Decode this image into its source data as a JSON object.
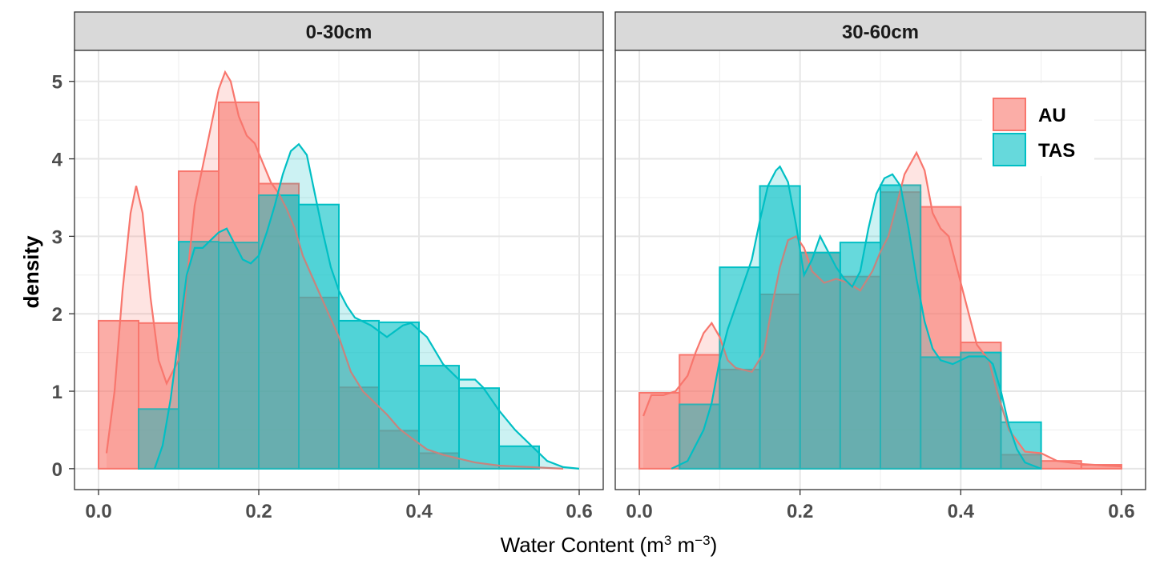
{
  "chart_data": {
    "type": "histogram-density",
    "xlabel": "Water Content (m",
    "xlabel_sup1": "3",
    "xlabel_mid": " m",
    "xlabel_sup2": "−3",
    "xlabel_end": ")",
    "ylabel": "density",
    "xlim": [
      -0.03,
      0.63
    ],
    "ylim": [
      -0.27,
      5.4
    ],
    "x_ticks": [
      0.0,
      0.2,
      0.4,
      0.6
    ],
    "x_tick_labels": [
      "0.0",
      "0.2",
      "0.4",
      "0.6"
    ],
    "y_ticks": [
      0,
      1,
      2,
      3,
      4,
      5
    ],
    "y_tick_labels": [
      "0",
      "1",
      "2",
      "3",
      "4",
      "5"
    ],
    "grid": true,
    "legend_position": "top-right (inside right panel)",
    "bins": [
      0.0,
      0.05,
      0.1,
      0.15,
      0.2,
      0.25,
      0.3,
      0.35,
      0.4,
      0.45,
      0.5,
      0.55,
      0.6
    ],
    "series": [
      {
        "name": "AU",
        "fill": "#F8766D",
        "line": "#F8766D"
      },
      {
        "name": "TAS",
        "fill": "#00BFC4",
        "line": "#00BFC4"
      }
    ],
    "panels": [
      {
        "label": "0-30cm",
        "hist": {
          "AU": [
            1.91,
            1.88,
            3.84,
            4.73,
            3.68,
            2.21,
            1.05,
            0.49,
            0.2,
            0.0,
            0.0,
            0.0
          ],
          "TAS": [
            0.0,
            0.77,
            2.93,
            2.92,
            3.53,
            3.41,
            1.91,
            1.89,
            1.33,
            1.04,
            0.29,
            0.0
          ]
        },
        "density": {
          "AU": [
            [
              0.01,
              0.2
            ],
            [
              0.02,
              1.0
            ],
            [
              0.03,
              2.3
            ],
            [
              0.04,
              3.3
            ],
            [
              0.047,
              3.65
            ],
            [
              0.055,
              3.3
            ],
            [
              0.065,
              2.2
            ],
            [
              0.075,
              1.4
            ],
            [
              0.085,
              1.1
            ],
            [
              0.1,
              1.4
            ],
            [
              0.11,
              2.4
            ],
            [
              0.12,
              3.4
            ],
            [
              0.13,
              3.9
            ],
            [
              0.14,
              4.4
            ],
            [
              0.15,
              4.9
            ],
            [
              0.158,
              5.12
            ],
            [
              0.165,
              5.0
            ],
            [
              0.175,
              4.55
            ],
            [
              0.185,
              4.3
            ],
            [
              0.195,
              4.2
            ],
            [
              0.205,
              3.95
            ],
            [
              0.215,
              3.7
            ],
            [
              0.225,
              3.55
            ],
            [
              0.235,
              3.35
            ],
            [
              0.245,
              3.1
            ],
            [
              0.255,
              2.75
            ],
            [
              0.27,
              2.4
            ],
            [
              0.285,
              2.05
            ],
            [
              0.3,
              1.7
            ],
            [
              0.315,
              1.25
            ],
            [
              0.33,
              1.0
            ],
            [
              0.345,
              0.85
            ],
            [
              0.36,
              0.7
            ],
            [
              0.375,
              0.52
            ],
            [
              0.39,
              0.4
            ],
            [
              0.41,
              0.25
            ],
            [
              0.43,
              0.18
            ],
            [
              0.45,
              0.13
            ],
            [
              0.47,
              0.08
            ],
            [
              0.5,
              0.04
            ],
            [
              0.54,
              0.02
            ],
            [
              0.58,
              0.0
            ]
          ],
          "TAS": [
            [
              0.07,
              0.0
            ],
            [
              0.08,
              0.3
            ],
            [
              0.09,
              0.9
            ],
            [
              0.1,
              1.7
            ],
            [
              0.11,
              2.5
            ],
            [
              0.12,
              2.85
            ],
            [
              0.13,
              2.85
            ],
            [
              0.14,
              2.95
            ],
            [
              0.15,
              3.05
            ],
            [
              0.16,
              3.1
            ],
            [
              0.17,
              2.9
            ],
            [
              0.18,
              2.7
            ],
            [
              0.19,
              2.65
            ],
            [
              0.2,
              2.75
            ],
            [
              0.21,
              3.05
            ],
            [
              0.22,
              3.4
            ],
            [
              0.23,
              3.8
            ],
            [
              0.24,
              4.1
            ],
            [
              0.25,
              4.19
            ],
            [
              0.26,
              4.05
            ],
            [
              0.27,
              3.55
            ],
            [
              0.28,
              3.05
            ],
            [
              0.29,
              2.6
            ],
            [
              0.3,
              2.3
            ],
            [
              0.31,
              2.1
            ],
            [
              0.32,
              1.95
            ],
            [
              0.34,
              1.85
            ],
            [
              0.36,
              1.7
            ],
            [
              0.38,
              1.85
            ],
            [
              0.39,
              1.88
            ],
            [
              0.41,
              1.7
            ],
            [
              0.43,
              1.35
            ],
            [
              0.45,
              1.15
            ],
            [
              0.47,
              1.15
            ],
            [
              0.48,
              1.05
            ],
            [
              0.5,
              0.75
            ],
            [
              0.52,
              0.5
            ],
            [
              0.54,
              0.3
            ],
            [
              0.56,
              0.1
            ],
            [
              0.58,
              0.02
            ],
            [
              0.6,
              0.0
            ]
          ]
        }
      },
      {
        "label": "30-60cm",
        "hist": {
          "AU": [
            0.98,
            1.47,
            1.28,
            2.25,
            2.79,
            2.48,
            3.57,
            3.38,
            1.63,
            0.18,
            0.1,
            0.05
          ],
          "TAS": [
            0.0,
            0.83,
            2.6,
            3.65,
            2.79,
            2.92,
            3.66,
            1.44,
            1.5,
            0.6,
            0.0,
            0.0
          ]
        },
        "density": {
          "AU": [
            [
              0.005,
              0.68
            ],
            [
              0.015,
              0.95
            ],
            [
              0.03,
              0.95
            ],
            [
              0.045,
              1.0
            ],
            [
              0.06,
              1.2
            ],
            [
              0.07,
              1.5
            ],
            [
              0.08,
              1.75
            ],
            [
              0.09,
              1.88
            ],
            [
              0.1,
              1.7
            ],
            [
              0.11,
              1.4
            ],
            [
              0.12,
              1.3
            ],
            [
              0.14,
              1.25
            ],
            [
              0.155,
              1.5
            ],
            [
              0.165,
              2.1
            ],
            [
              0.175,
              2.6
            ],
            [
              0.185,
              2.95
            ],
            [
              0.195,
              3.0
            ],
            [
              0.205,
              2.85
            ],
            [
              0.215,
              2.55
            ],
            [
              0.23,
              2.4
            ],
            [
              0.245,
              2.45
            ],
            [
              0.26,
              2.4
            ],
            [
              0.275,
              2.3
            ],
            [
              0.29,
              2.55
            ],
            [
              0.3,
              2.8
            ],
            [
              0.31,
              3.0
            ],
            [
              0.32,
              3.4
            ],
            [
              0.33,
              3.8
            ],
            [
              0.345,
              4.08
            ],
            [
              0.355,
              3.85
            ],
            [
              0.365,
              3.3
            ],
            [
              0.375,
              3.1
            ],
            [
              0.385,
              3.0
            ],
            [
              0.395,
              2.6
            ],
            [
              0.41,
              2.0
            ],
            [
              0.42,
              1.6
            ],
            [
              0.435,
              1.4
            ],
            [
              0.445,
              1.0
            ],
            [
              0.46,
              0.5
            ],
            [
              0.48,
              0.22
            ],
            [
              0.5,
              0.2
            ],
            [
              0.52,
              0.1
            ],
            [
              0.55,
              0.06
            ],
            [
              0.58,
              0.04
            ],
            [
              0.6,
              0.03
            ]
          ],
          "TAS": [
            [
              0.04,
              0.0
            ],
            [
              0.06,
              0.1
            ],
            [
              0.08,
              0.5
            ],
            [
              0.09,
              0.85
            ],
            [
              0.1,
              1.4
            ],
            [
              0.11,
              1.8
            ],
            [
              0.12,
              2.1
            ],
            [
              0.13,
              2.4
            ],
            [
              0.14,
              2.7
            ],
            [
              0.15,
              3.2
            ],
            [
              0.16,
              3.65
            ],
            [
              0.17,
              3.85
            ],
            [
              0.175,
              3.9
            ],
            [
              0.185,
              3.7
            ],
            [
              0.195,
              3.15
            ],
            [
              0.205,
              2.5
            ],
            [
              0.215,
              2.7
            ],
            [
              0.225,
              3.0
            ],
            [
              0.235,
              2.8
            ],
            [
              0.245,
              2.6
            ],
            [
              0.255,
              2.45
            ],
            [
              0.265,
              2.35
            ],
            [
              0.275,
              2.55
            ],
            [
              0.285,
              3.1
            ],
            [
              0.295,
              3.55
            ],
            [
              0.305,
              3.75
            ],
            [
              0.315,
              3.8
            ],
            [
              0.325,
              3.65
            ],
            [
              0.335,
              3.1
            ],
            [
              0.345,
              2.45
            ],
            [
              0.355,
              1.9
            ],
            [
              0.365,
              1.55
            ],
            [
              0.375,
              1.4
            ],
            [
              0.39,
              1.35
            ],
            [
              0.41,
              1.45
            ],
            [
              0.43,
              1.45
            ],
            [
              0.44,
              1.35
            ],
            [
              0.45,
              1.0
            ],
            [
              0.46,
              0.55
            ],
            [
              0.47,
              0.25
            ],
            [
              0.48,
              0.08
            ],
            [
              0.5,
              0.0
            ]
          ]
        }
      }
    ]
  }
}
